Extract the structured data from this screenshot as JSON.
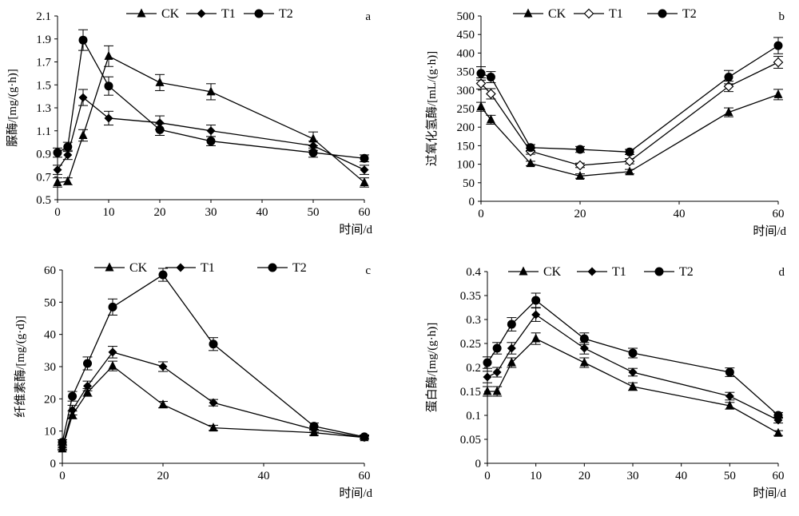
{
  "chart_data": [
    {
      "type": "line",
      "panel_label": "a",
      "ylabel": "脲酶/[mg/(g·h)]",
      "xlabel": "时间/d",
      "x": [
        0,
        2,
        5,
        10,
        20,
        30,
        50,
        60
      ],
      "xlim": [
        0,
        60
      ],
      "ylim": [
        0.5,
        2.1
      ],
      "xticks": [
        "0",
        "10",
        "20",
        "30",
        "40",
        "50",
        "60"
      ],
      "yticks": [
        "0.5",
        "0.7",
        "0.9",
        "1.1",
        "1.3",
        "1.5",
        "1.7",
        "1.9",
        "2.1"
      ],
      "grid": false,
      "legend_position": "top",
      "series": [
        {
          "name": "CK",
          "marker": "triangle",
          "values": [
            0.65,
            0.66,
            1.06,
            1.75,
            1.52,
            1.44,
            1.03,
            0.65
          ],
          "errors": [
            0.04,
            0.03,
            0.05,
            0.09,
            0.07,
            0.07,
            0.06,
            0.04
          ]
        },
        {
          "name": "T1",
          "marker": "diamond",
          "values": [
            0.76,
            0.89,
            1.39,
            1.21,
            1.17,
            1.1,
            0.97,
            0.76
          ],
          "errors": [
            0.04,
            0.04,
            0.07,
            0.06,
            0.06,
            0.05,
            0.04,
            0.04
          ]
        },
        {
          "name": "T2",
          "marker": "circle",
          "values": [
            0.91,
            0.96,
            1.89,
            1.49,
            1.11,
            1.01,
            0.91,
            0.86
          ],
          "errors": [
            0.04,
            0.04,
            0.09,
            0.08,
            0.05,
            0.04,
            0.04,
            0.03
          ]
        }
      ]
    },
    {
      "type": "line",
      "panel_label": "b",
      "ylabel": "过氧化氢酶/[mL/(g·h)]",
      "xlabel": "时间/d",
      "x": [
        0,
        2,
        10,
        20,
        30,
        50,
        60
      ],
      "xlim": [
        0,
        60
      ],
      "ylim": [
        0,
        500
      ],
      "xticks": [
        "0",
        "20",
        "40",
        "60"
      ],
      "yticks": [
        "0",
        "50",
        "100",
        "150",
        "200",
        "250",
        "300",
        "350",
        "400",
        "450",
        "500"
      ],
      "grid": false,
      "legend_position": "top",
      "series": [
        {
          "name": "CK",
          "marker": "triangle",
          "values": [
            255,
            220,
            102,
            68,
            80,
            240,
            288
          ],
          "errors": [
            12,
            12,
            6,
            6,
            6,
            12,
            14
          ]
        },
        {
          "name": "T1",
          "marker": "diamond-open",
          "values": [
            318,
            290,
            135,
            97,
            108,
            310,
            375
          ],
          "errors": [
            15,
            14,
            8,
            6,
            7,
            14,
            16
          ]
        },
        {
          "name": "T2",
          "marker": "circle",
          "values": [
            345,
            335,
            145,
            140,
            133,
            335,
            420
          ],
          "errors": [
            18,
            15,
            8,
            8,
            7,
            18,
            22
          ]
        }
      ]
    },
    {
      "type": "line",
      "panel_label": "c",
      "ylabel": "纤维素酶/[mg/(g·d)]",
      "xlabel": "时间/d",
      "x": [
        0,
        2,
        5,
        10,
        20,
        30,
        50,
        60
      ],
      "xlim": [
        0,
        60
      ],
      "ylim": [
        0,
        60
      ],
      "xticks": [
        "0",
        "20",
        "40",
        "60"
      ],
      "yticks": [
        "0",
        "10",
        "20",
        "30",
        "40",
        "50",
        "60"
      ],
      "grid": false,
      "legend_position": "top",
      "series": [
        {
          "name": "CK",
          "marker": "triangle",
          "values": [
            4.5,
            15.0,
            22.0,
            30.2,
            18.2,
            11.0,
            9.5,
            8.0
          ],
          "errors": [
            0.5,
            1.2,
            1.2,
            1.5,
            1.0,
            0.8,
            0.8,
            0.5
          ]
        },
        {
          "name": "T1",
          "marker": "diamond",
          "values": [
            5.0,
            16.5,
            24.0,
            34.5,
            30.0,
            18.8,
            10.5,
            8.0
          ],
          "errors": [
            0.6,
            1.5,
            1.5,
            1.8,
            1.5,
            1.0,
            0.8,
            0.5
          ]
        },
        {
          "name": "T2",
          "marker": "circle",
          "values": [
            6.5,
            20.8,
            31.0,
            48.5,
            58.5,
            37.0,
            11.5,
            8.2
          ],
          "errors": [
            0.8,
            1.5,
            2.0,
            2.5,
            2.0,
            2.0,
            1.0,
            0.6
          ]
        }
      ]
    },
    {
      "type": "line",
      "panel_label": "d",
      "ylabel": "蛋白酶/[mg/(g·h)]",
      "xlabel": "时间/d",
      "x": [
        0,
        2,
        5,
        10,
        20,
        30,
        50,
        60
      ],
      "xlim": [
        0,
        60
      ],
      "ylim": [
        0,
        0.4
      ],
      "xticks": [
        "0",
        "10",
        "20",
        "30",
        "40",
        "50",
        "60"
      ],
      "yticks": [
        "0",
        "0.05",
        "0.1",
        "0.15",
        "0.2",
        "0.25",
        "0.3",
        "0.35",
        "0.4"
      ],
      "grid": false,
      "legend_position": "top",
      "series": [
        {
          "name": "CK",
          "marker": "triangle",
          "values": [
            0.15,
            0.15,
            0.21,
            0.26,
            0.21,
            0.16,
            0.12,
            0.063
          ],
          "errors": [
            0.01,
            0.01,
            0.01,
            0.012,
            0.01,
            0.008,
            0.007,
            0.005
          ]
        },
        {
          "name": "T1",
          "marker": "diamond",
          "values": [
            0.18,
            0.19,
            0.24,
            0.31,
            0.24,
            0.19,
            0.14,
            0.09
          ],
          "errors": [
            0.012,
            0.01,
            0.012,
            0.014,
            0.012,
            0.008,
            0.008,
            0.006
          ]
        },
        {
          "name": "T2",
          "marker": "circle",
          "values": [
            0.21,
            0.24,
            0.29,
            0.34,
            0.26,
            0.23,
            0.19,
            0.1
          ],
          "errors": [
            0.012,
            0.012,
            0.014,
            0.015,
            0.012,
            0.01,
            0.009,
            0.006
          ]
        }
      ]
    }
  ]
}
